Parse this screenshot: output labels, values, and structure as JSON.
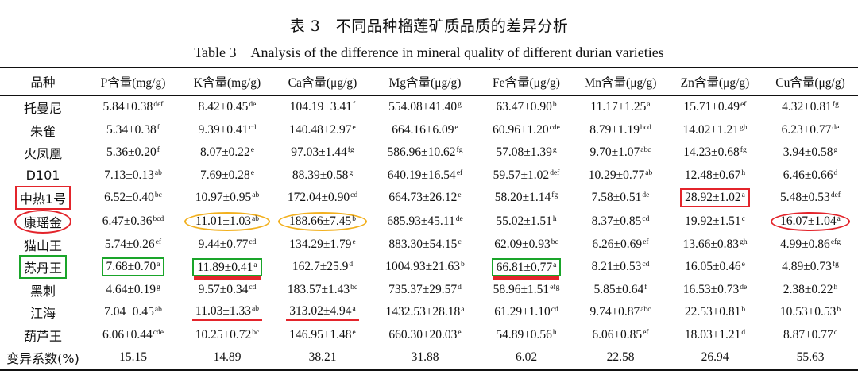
{
  "title_cn": "表 3　不同品种榴莲矿质品质的差异分析",
  "title_en": "Table 3　Analysis of the difference in mineral quality of different durian varieties",
  "colors": {
    "red_mark": "#e3242b",
    "green_mark": "#1aa52a",
    "yellow_mark": "#f2b01e"
  },
  "headers": [
    "品种",
    "P含量(mg/g)",
    "K含量(mg/g)",
    "Ca含量(μg/g)",
    "Mg含量(μg/g)",
    "Fe含量(μg/g)",
    "Mn含量(μg/g)",
    "Zn含量(μg/g)",
    "Cu含量(μg/g)"
  ],
  "rows": [
    {
      "variety": "托曼尼",
      "cells": [
        {
          "v": "5.84±0.38",
          "s": "def"
        },
        {
          "v": "8.42±0.45",
          "s": "de"
        },
        {
          "v": "104.19±3.41",
          "s": "f"
        },
        {
          "v": "554.08±41.40",
          "s": "g"
        },
        {
          "v": "63.47±0.90",
          "s": "b"
        },
        {
          "v": "11.17±1.25",
          "s": "a"
        },
        {
          "v": "15.71±0.49",
          "s": "ef"
        },
        {
          "v": "4.32±0.81",
          "s": "fg"
        }
      ]
    },
    {
      "variety": "朱雀",
      "cells": [
        {
          "v": "5.34±0.38",
          "s": "f"
        },
        {
          "v": "9.39±0.41",
          "s": "cd"
        },
        {
          "v": "140.48±2.97",
          "s": "e"
        },
        {
          "v": "664.16±6.09",
          "s": "e"
        },
        {
          "v": "60.96±1.20",
          "s": "cde"
        },
        {
          "v": "8.79±1.19",
          "s": "bcd"
        },
        {
          "v": "14.02±1.21",
          "s": "gh"
        },
        {
          "v": "6.23±0.77",
          "s": "de"
        }
      ]
    },
    {
      "variety": "火凤凰",
      "cells": [
        {
          "v": "5.36±0.20",
          "s": "f"
        },
        {
          "v": "8.07±0.22",
          "s": "e"
        },
        {
          "v": "97.03±1.44",
          "s": "fg"
        },
        {
          "v": "586.96±10.62",
          "s": "fg"
        },
        {
          "v": "57.08±1.39",
          "s": "g"
        },
        {
          "v": "9.70±1.07",
          "s": "abc"
        },
        {
          "v": "14.23±0.68",
          "s": "fg"
        },
        {
          "v": "3.94±0.58",
          "s": "g"
        }
      ]
    },
    {
      "variety": "D101",
      "cells": [
        {
          "v": "7.13±0.13",
          "s": "ab"
        },
        {
          "v": "7.69±0.28",
          "s": "e"
        },
        {
          "v": "88.39±0.58",
          "s": "g"
        },
        {
          "v": "640.19±16.54",
          "s": "ef"
        },
        {
          "v": "59.57±1.02",
          "s": "def"
        },
        {
          "v": "10.29±0.77",
          "s": "ab"
        },
        {
          "v": "12.48±0.67",
          "s": "h"
        },
        {
          "v": "6.46±0.66",
          "s": "d"
        }
      ]
    },
    {
      "variety": "中热1号",
      "vmark": "red-box",
      "cells": [
        {
          "v": "6.52±0.40",
          "s": "bc"
        },
        {
          "v": "10.97±0.95",
          "s": "ab"
        },
        {
          "v": "172.04±0.90",
          "s": "cd"
        },
        {
          "v": "664.73±26.12",
          "s": "e"
        },
        {
          "v": "58.20±1.14",
          "s": "fg"
        },
        {
          "v": "7.58±0.51",
          "s": "de"
        },
        {
          "v": "28.92±1.02",
          "s": "a",
          "m": "red-box"
        },
        {
          "v": "5.48±0.53",
          "s": "def"
        }
      ]
    },
    {
      "variety": "康瑶金",
      "vmark": "red-ellipse",
      "cells": [
        {
          "v": "6.47±0.36",
          "s": "bcd"
        },
        {
          "v": "11.01±1.03",
          "s": "ab",
          "m": "yellow-ellipse"
        },
        {
          "v": "188.66±7.45",
          "s": "b",
          "m": "yellow-ellipse"
        },
        {
          "v": "685.93±45.11",
          "s": "de"
        },
        {
          "v": "55.02±1.51",
          "s": "h"
        },
        {
          "v": "8.37±0.85",
          "s": "cd"
        },
        {
          "v": "19.92±1.51",
          "s": "c"
        },
        {
          "v": "16.07±1.04",
          "s": "a",
          "m": "red-ellipse"
        }
      ]
    },
    {
      "variety": "猫山王",
      "cells": [
        {
          "v": "5.74±0.26",
          "s": "ef"
        },
        {
          "v": "9.44±0.77",
          "s": "cd"
        },
        {
          "v": "134.29±1.79",
          "s": "e"
        },
        {
          "v": "883.30±54.15",
          "s": "c"
        },
        {
          "v": "62.09±0.93",
          "s": "bc"
        },
        {
          "v": "6.26±0.69",
          "s": "ef"
        },
        {
          "v": "13.66±0.83",
          "s": "gh"
        },
        {
          "v": "4.99±0.86",
          "s": "efg"
        }
      ]
    },
    {
      "variety": "苏丹王",
      "vmark": "green-box",
      "cells": [
        {
          "v": "7.68±0.70",
          "s": "a",
          "m": "green-box"
        },
        {
          "v": "11.89±0.41",
          "s": "a",
          "m": "green-box red-underline"
        },
        {
          "v": "162.7±25.9",
          "s": "d"
        },
        {
          "v": "1004.93±21.63",
          "s": "b"
        },
        {
          "v": "66.81±0.77",
          "s": "a",
          "m": "green-box red-underline"
        },
        {
          "v": "8.21±0.53",
          "s": "cd"
        },
        {
          "v": "16.05±0.46",
          "s": "e"
        },
        {
          "v": "4.89±0.73",
          "s": "fg"
        }
      ]
    },
    {
      "variety": "黑刺",
      "cells": [
        {
          "v": "4.64±0.19",
          "s": "g"
        },
        {
          "v": "9.57±0.34",
          "s": "cd"
        },
        {
          "v": "183.57±1.43",
          "s": "bc"
        },
        {
          "v": "735.37±29.57",
          "s": "d"
        },
        {
          "v": "58.96±1.51",
          "s": "efg"
        },
        {
          "v": "5.85±0.64",
          "s": "f"
        },
        {
          "v": "16.53±0.73",
          "s": "de"
        },
        {
          "v": "2.38±0.22",
          "s": "h"
        }
      ]
    },
    {
      "variety": "江海",
      "cells": [
        {
          "v": "7.04±0.45",
          "s": "ab"
        },
        {
          "v": "11.03±1.33",
          "s": "ab",
          "m": "red-underline"
        },
        {
          "v": "313.02±4.94",
          "s": "a",
          "m": "red-underline"
        },
        {
          "v": "1432.53±28.18",
          "s": "a"
        },
        {
          "v": "61.29±1.10",
          "s": "cd"
        },
        {
          "v": "9.74±0.87",
          "s": "abc"
        },
        {
          "v": "22.53±0.81",
          "s": "b"
        },
        {
          "v": "10.53±0.53",
          "s": "b"
        }
      ]
    },
    {
      "variety": "葫芦王",
      "cells": [
        {
          "v": "6.06±0.44",
          "s": "cde"
        },
        {
          "v": "10.25±0.72",
          "s": "bc"
        },
        {
          "v": "146.95±1.48",
          "s": "e"
        },
        {
          "v": "660.30±20.03",
          "s": "e"
        },
        {
          "v": "54.89±0.56",
          "s": "h"
        },
        {
          "v": "6.06±0.85",
          "s": "ef"
        },
        {
          "v": "18.03±1.21",
          "s": "d"
        },
        {
          "v": "8.87±0.77",
          "s": "c"
        }
      ]
    },
    {
      "variety": "变异系数(%)",
      "cells": [
        {
          "v": "15.15",
          "s": ""
        },
        {
          "v": "14.89",
          "s": ""
        },
        {
          "v": "38.21",
          "s": ""
        },
        {
          "v": "31.88",
          "s": ""
        },
        {
          "v": "6.02",
          "s": ""
        },
        {
          "v": "22.58",
          "s": ""
        },
        {
          "v": "26.94",
          "s": ""
        },
        {
          "v": "55.63",
          "s": ""
        }
      ]
    }
  ]
}
